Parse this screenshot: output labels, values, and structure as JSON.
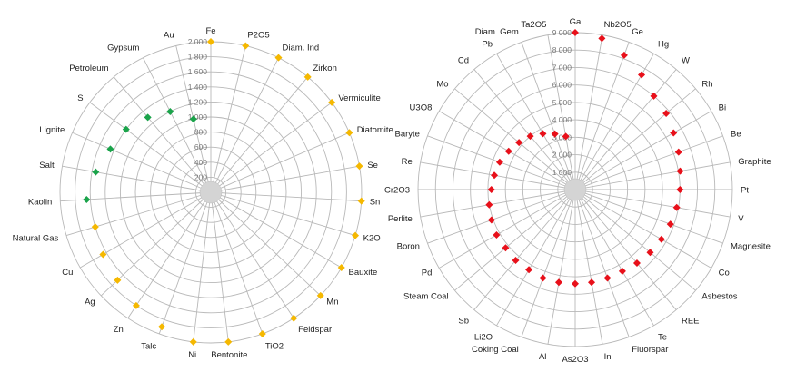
{
  "chart_data": [
    {
      "type": "radar",
      "title": "",
      "categories": [
        "Fe",
        "P2O5",
        "Diam. Ind",
        "Zirkon",
        "Vermiculite",
        "Diatomite",
        "Se",
        "Sn",
        "K2O",
        "Bauxite",
        "Mn",
        "Feldspar",
        "TiO2",
        "Bentonite",
        "Ni",
        "Talc",
        "Zn",
        "Ag",
        "Cu",
        "Natural Gas",
        "Kaolin",
        "Salt",
        "Lignite",
        "S",
        "Petroleum",
        "Gypsum",
        "Au"
      ],
      "rmax": 2000,
      "ticks": [
        200,
        400,
        600,
        800,
        1000,
        1200,
        1400,
        1600,
        1800,
        2000
      ],
      "tick_labels": [
        "200",
        "400",
        "600",
        "800",
        "1 000",
        "1 200",
        "1 400",
        "1 600",
        "1 800",
        "2 000"
      ],
      "gridlines": true,
      "legend": "none",
      "series": [
        {
          "color": "#f5b800",
          "marker": "diamond",
          "values": [
            2000,
            2000,
            2000,
            2000,
            2000,
            2000,
            2000,
            2000,
            2000,
            2000,
            2000,
            2000,
            2000,
            2000,
            2000,
            1900,
            1800,
            1700,
            1650,
            1600,
            null,
            null,
            null,
            null,
            null,
            null,
            null
          ]
        },
        {
          "color": "#1aa34a",
          "marker": "diamond",
          "values": [
            null,
            null,
            null,
            null,
            null,
            null,
            null,
            null,
            null,
            null,
            null,
            null,
            null,
            null,
            null,
            null,
            null,
            null,
            null,
            null,
            1650,
            1550,
            1450,
            1400,
            1300,
            1200,
            1000
          ]
        }
      ]
    },
    {
      "type": "radar",
      "title": "",
      "categories": [
        "Ga",
        "Nb2O5",
        "Ge",
        "Hg",
        "W",
        "Rh",
        "Bi",
        "Be",
        "Graphite",
        "Pt",
        "V",
        "Magnesite",
        "Co",
        "Asbestos",
        "REE",
        "Te",
        "Fluorspar",
        "In",
        "As2O3",
        "Al",
        "Coking Coal",
        "Li2O",
        "Sb",
        "Steam Coal",
        "Pd",
        "Boron",
        "Perlite",
        "Cr2O3",
        "Re",
        "Baryte",
        "U3O8",
        "Mo",
        "Cd",
        "Pb",
        "Diam. Gem",
        "Ta2O5"
      ],
      "rmax": 9000,
      "ticks": [
        1000,
        2000,
        3000,
        4000,
        5000,
        6000,
        7000,
        8000,
        9000
      ],
      "tick_labels": [
        "1 000",
        "2 000",
        "3 000",
        "4 000",
        "5 000",
        "6 000",
        "7 000",
        "8 000",
        "9 000"
      ],
      "gridlines": true,
      "legend": "none",
      "series": [
        {
          "color": "#e8101a",
          "marker": "diamond",
          "values": [
            9000,
            8800,
            8200,
            7600,
            7000,
            6800,
            6500,
            6300,
            6100,
            6000,
            5900,
            5800,
            5700,
            5600,
            5500,
            5400,
            5400,
            5400,
            5400,
            5400,
            5400,
            5300,
            5300,
            5200,
            5200,
            5100,
            5000,
            4800,
            4700,
            4600,
            4400,
            4200,
            4000,
            3700,
            3400,
            3100
          ]
        }
      ]
    }
  ]
}
